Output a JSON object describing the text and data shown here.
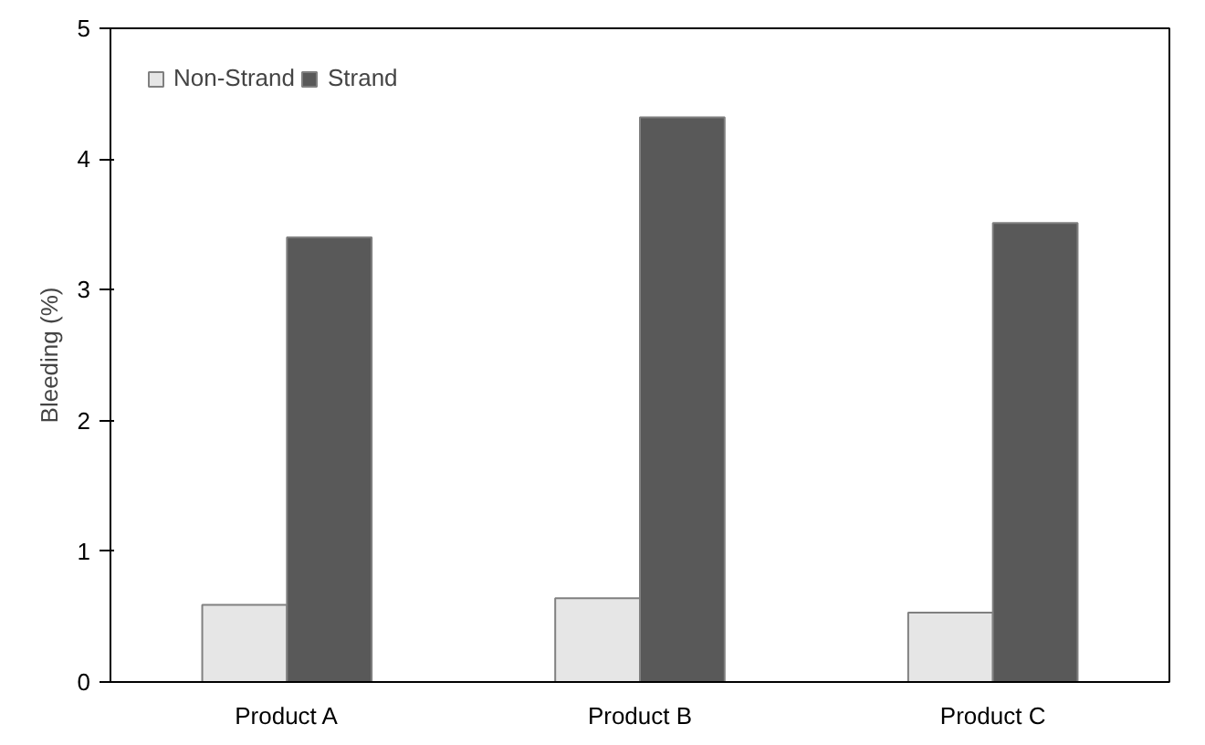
{
  "chart_data": {
    "type": "bar",
    "ylabel": "Bleeding (%)",
    "categories": [
      "Product A",
      "Product B",
      "Product C"
    ],
    "series": [
      {
        "name": "Non-Strand",
        "color": "#e6e6e6",
        "values": [
          0.59,
          0.64,
          0.53
        ]
      },
      {
        "name": "Strand",
        "color": "#595959",
        "values": [
          3.4,
          4.32,
          3.51
        ]
      }
    ],
    "ylim": [
      0,
      5
    ],
    "yticks": [
      0,
      1,
      2,
      3,
      4,
      5
    ],
    "grid": false,
    "legend": "top left"
  }
}
